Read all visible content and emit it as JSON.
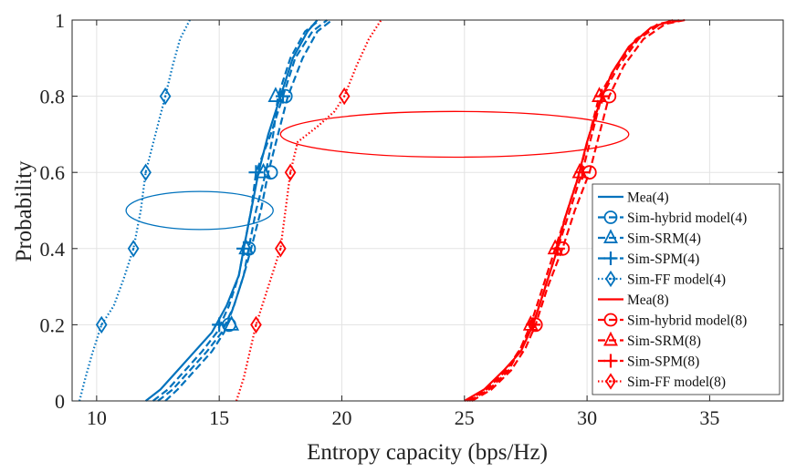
{
  "chart_data": {
    "type": "line",
    "title": "",
    "xlabel": "Entropy capacity (bps/Hz)",
    "ylabel": "Probability",
    "xlim": [
      9,
      38
    ],
    "ylim": [
      0,
      1
    ],
    "xticks": [
      10,
      15,
      20,
      25,
      30,
      35
    ],
    "yticks": [
      0,
      0.2,
      0.4,
      0.6,
      0.8,
      1
    ],
    "xtick_labels": [
      "10",
      "15",
      "20",
      "25",
      "30",
      "35"
    ],
    "ytick_labels": [
      "0",
      "0.2",
      "0.4",
      "0.6",
      "0.8",
      "1"
    ],
    "grid": true,
    "legend_position": "right",
    "colors": {
      "blue": "#0072BD",
      "red": "#FF0000",
      "grid": "#e3e3e3",
      "axis": "#262626"
    },
    "series": [
      {
        "name": "Mea(4)",
        "color": "#0072BD",
        "dash": "solid",
        "marker": "none",
        "points": [
          [
            12.0,
            0
          ],
          [
            12.6,
            0.03
          ],
          [
            13.3,
            0.08
          ],
          [
            14.0,
            0.13
          ],
          [
            14.7,
            0.18
          ],
          [
            15.3,
            0.25
          ],
          [
            15.8,
            0.33
          ],
          [
            16.0,
            0.4
          ],
          [
            16.3,
            0.5
          ],
          [
            16.6,
            0.6
          ],
          [
            17.0,
            0.7
          ],
          [
            17.5,
            0.8
          ],
          [
            18.0,
            0.9
          ],
          [
            18.6,
            0.97
          ],
          [
            19.0,
            1.0
          ]
        ]
      },
      {
        "name": "Sim-hybrid model(4)",
        "color": "#0072BD",
        "dash": "dashed",
        "marker": "circle",
        "markers": [
          [
            15.4,
            0.2
          ],
          [
            16.2,
            0.4
          ],
          [
            17.1,
            0.6
          ],
          [
            17.7,
            0.8
          ]
        ],
        "points": [
          [
            12.8,
            0
          ],
          [
            13.3,
            0.03
          ],
          [
            14.0,
            0.08
          ],
          [
            14.7,
            0.13
          ],
          [
            15.2,
            0.18
          ],
          [
            15.6,
            0.25
          ],
          [
            16.0,
            0.33
          ],
          [
            16.3,
            0.4
          ],
          [
            16.7,
            0.5
          ],
          [
            17.0,
            0.6
          ],
          [
            17.4,
            0.7
          ],
          [
            17.8,
            0.8
          ],
          [
            18.4,
            0.9
          ],
          [
            19.0,
            0.97
          ],
          [
            19.6,
            1.0
          ]
        ]
      },
      {
        "name": "Sim-SRM(4)",
        "color": "#0072BD",
        "dash": "dashed",
        "marker": "triangle",
        "markers": [
          [
            15.5,
            0.2
          ],
          [
            16.1,
            0.4
          ],
          [
            16.8,
            0.6
          ],
          [
            17.3,
            0.8
          ]
        ],
        "points": [
          [
            12.5,
            0
          ],
          [
            13.1,
            0.03
          ],
          [
            13.8,
            0.08
          ],
          [
            14.5,
            0.13
          ],
          [
            15.1,
            0.18
          ],
          [
            15.6,
            0.25
          ],
          [
            16.0,
            0.33
          ],
          [
            16.2,
            0.4
          ],
          [
            16.5,
            0.5
          ],
          [
            16.9,
            0.6
          ],
          [
            17.2,
            0.7
          ],
          [
            17.4,
            0.8
          ],
          [
            17.9,
            0.9
          ],
          [
            18.5,
            0.97
          ],
          [
            19.1,
            1.0
          ]
        ]
      },
      {
        "name": "Sim-SPM(4)",
        "color": "#0072BD",
        "dash": "dashed",
        "marker": "plus",
        "markers": [
          [
            15.0,
            0.2
          ],
          [
            16.0,
            0.4
          ],
          [
            16.5,
            0.6
          ],
          [
            17.6,
            0.8
          ]
        ],
        "points": [
          [
            12.3,
            0
          ],
          [
            12.9,
            0.03
          ],
          [
            13.6,
            0.08
          ],
          [
            14.3,
            0.13
          ],
          [
            14.9,
            0.18
          ],
          [
            15.4,
            0.25
          ],
          [
            15.8,
            0.33
          ],
          [
            16.0,
            0.4
          ],
          [
            16.3,
            0.5
          ],
          [
            16.5,
            0.6
          ],
          [
            17.1,
            0.7
          ],
          [
            17.6,
            0.8
          ],
          [
            18.1,
            0.9
          ],
          [
            18.8,
            0.97
          ],
          [
            19.4,
            1.0
          ]
        ]
      },
      {
        "name": "Sim-FF model(4)",
        "color": "#0072BD",
        "dash": "dotted",
        "marker": "diamond",
        "markers": [
          [
            10.2,
            0.2
          ],
          [
            11.5,
            0.4
          ],
          [
            12.0,
            0.6
          ],
          [
            12.8,
            0.8
          ]
        ],
        "points": [
          [
            9.3,
            0
          ],
          [
            9.5,
            0.05
          ],
          [
            9.8,
            0.12
          ],
          [
            10.2,
            0.2
          ],
          [
            10.7,
            0.25
          ],
          [
            11.1,
            0.32
          ],
          [
            11.5,
            0.4
          ],
          [
            11.8,
            0.5
          ],
          [
            12.0,
            0.6
          ],
          [
            12.4,
            0.7
          ],
          [
            12.8,
            0.8
          ],
          [
            13.1,
            0.88
          ],
          [
            13.4,
            0.95
          ],
          [
            13.8,
            1.0
          ]
        ]
      },
      {
        "name": "Mea(8)",
        "color": "#FF0000",
        "dash": "solid",
        "marker": "none",
        "points": [
          [
            25.0,
            0
          ],
          [
            25.8,
            0.03
          ],
          [
            26.6,
            0.08
          ],
          [
            27.3,
            0.13
          ],
          [
            27.8,
            0.2
          ],
          [
            28.2,
            0.28
          ],
          [
            28.7,
            0.38
          ],
          [
            29.1,
            0.48
          ],
          [
            29.6,
            0.58
          ],
          [
            30.0,
            0.68
          ],
          [
            30.5,
            0.78
          ],
          [
            31.0,
            0.86
          ],
          [
            31.7,
            0.93
          ],
          [
            32.6,
            0.98
          ],
          [
            33.5,
            1.0
          ]
        ]
      },
      {
        "name": "Sim-hybrid model(8)",
        "color": "#FF0000",
        "dash": "dashed",
        "marker": "circle",
        "markers": [
          [
            27.9,
            0.2
          ],
          [
            29.0,
            0.4
          ],
          [
            30.1,
            0.6
          ],
          [
            30.9,
            0.8
          ]
        ],
        "points": [
          [
            25.3,
            0
          ],
          [
            26.1,
            0.03
          ],
          [
            26.9,
            0.08
          ],
          [
            27.5,
            0.14
          ],
          [
            27.9,
            0.2
          ],
          [
            28.4,
            0.3
          ],
          [
            29.0,
            0.4
          ],
          [
            29.5,
            0.5
          ],
          [
            30.1,
            0.6
          ],
          [
            30.5,
            0.7
          ],
          [
            30.9,
            0.8
          ],
          [
            31.5,
            0.88
          ],
          [
            32.3,
            0.95
          ],
          [
            33.2,
            0.99
          ],
          [
            34.0,
            1.0
          ]
        ]
      },
      {
        "name": "Sim-SRM(8)",
        "color": "#FF0000",
        "dash": "dashed",
        "marker": "triangle",
        "markers": [
          [
            27.7,
            0.2
          ],
          [
            28.7,
            0.4
          ],
          [
            29.7,
            0.6
          ],
          [
            30.5,
            0.8
          ]
        ],
        "points": [
          [
            25.2,
            0
          ],
          [
            26.0,
            0.03
          ],
          [
            26.8,
            0.08
          ],
          [
            27.3,
            0.14
          ],
          [
            27.7,
            0.2
          ],
          [
            28.2,
            0.3
          ],
          [
            28.7,
            0.4
          ],
          [
            29.2,
            0.5
          ],
          [
            29.7,
            0.6
          ],
          [
            30.1,
            0.7
          ],
          [
            30.5,
            0.8
          ],
          [
            31.2,
            0.88
          ],
          [
            32.0,
            0.95
          ],
          [
            32.9,
            0.99
          ],
          [
            33.8,
            1.0
          ]
        ]
      },
      {
        "name": "Sim-SPM(8)",
        "color": "#FF0000",
        "dash": "dashed",
        "marker": "plus",
        "markers": [
          [
            27.8,
            0.2
          ],
          [
            28.8,
            0.4
          ],
          [
            29.8,
            0.6
          ],
          [
            30.6,
            0.8
          ]
        ],
        "points": [
          [
            25.1,
            0
          ],
          [
            25.9,
            0.03
          ],
          [
            26.7,
            0.08
          ],
          [
            27.3,
            0.14
          ],
          [
            27.8,
            0.2
          ],
          [
            28.3,
            0.3
          ],
          [
            28.8,
            0.4
          ],
          [
            29.3,
            0.5
          ],
          [
            29.8,
            0.6
          ],
          [
            30.2,
            0.7
          ],
          [
            30.6,
            0.8
          ],
          [
            31.3,
            0.88
          ],
          [
            32.1,
            0.95
          ],
          [
            33.0,
            0.99
          ],
          [
            33.9,
            1.0
          ]
        ]
      },
      {
        "name": "Sim-FF model(8)",
        "color": "#FF0000",
        "dash": "dotted",
        "marker": "diamond",
        "markers": [
          [
            16.5,
            0.2
          ],
          [
            17.5,
            0.4
          ],
          [
            17.9,
            0.6
          ],
          [
            20.1,
            0.8
          ]
        ],
        "points": [
          [
            15.7,
            0
          ],
          [
            16.0,
            0.06
          ],
          [
            16.5,
            0.2
          ],
          [
            17.0,
            0.3
          ],
          [
            17.5,
            0.4
          ],
          [
            17.7,
            0.5
          ],
          [
            17.9,
            0.6
          ],
          [
            18.2,
            0.68
          ],
          [
            19.0,
            0.72
          ],
          [
            19.7,
            0.76
          ],
          [
            20.1,
            0.8
          ],
          [
            20.6,
            0.88
          ],
          [
            21.1,
            0.95
          ],
          [
            21.6,
            1.0
          ]
        ]
      }
    ],
    "annotations": [
      {
        "type": "ellipse",
        "color": "#0072BD",
        "center": [
          14.2,
          0.5
        ],
        "radius": [
          3.0,
          0.05
        ]
      },
      {
        "type": "ellipse",
        "color": "#FF0000",
        "center": [
          24.6,
          0.7
        ],
        "radius": [
          7.1,
          0.06
        ]
      }
    ]
  }
}
